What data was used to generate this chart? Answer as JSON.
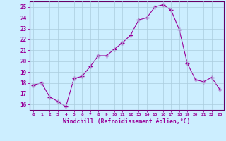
{
  "x": [
    0,
    1,
    2,
    3,
    4,
    5,
    6,
    7,
    8,
    9,
    10,
    11,
    12,
    13,
    14,
    15,
    16,
    17,
    18,
    19,
    20,
    21,
    22,
    23
  ],
  "y": [
    17.8,
    18.0,
    16.7,
    16.3,
    15.8,
    18.4,
    18.6,
    19.5,
    20.5,
    20.5,
    21.1,
    21.7,
    22.4,
    23.8,
    24.0,
    25.0,
    25.2,
    24.7,
    22.9,
    19.8,
    18.3,
    18.1,
    18.5,
    17.4
  ],
  "line_color": "#990099",
  "marker": "+",
  "marker_size": 4,
  "marker_color": "#990099",
  "bg_color": "#cceeff",
  "grid_color": "#aaccdd",
  "axis_color": "#660066",
  "tick_color": "#990099",
  "xlabel": "Windchill (Refroidissement éolien,°C)",
  "xlabel_color": "#990099",
  "ylim": [
    15.5,
    25.5
  ],
  "xlim": [
    -0.5,
    23.5
  ],
  "yticks": [
    16,
    17,
    18,
    19,
    20,
    21,
    22,
    23,
    24,
    25
  ],
  "xtick_labels": [
    "0",
    "1",
    "2",
    "3",
    "4",
    "5",
    "6",
    "7",
    "8",
    "9",
    "10",
    "11",
    "12",
    "13",
    "14",
    "15",
    "16",
    "17",
    "18",
    "19",
    "20",
    "21",
    "22",
    "23"
  ]
}
